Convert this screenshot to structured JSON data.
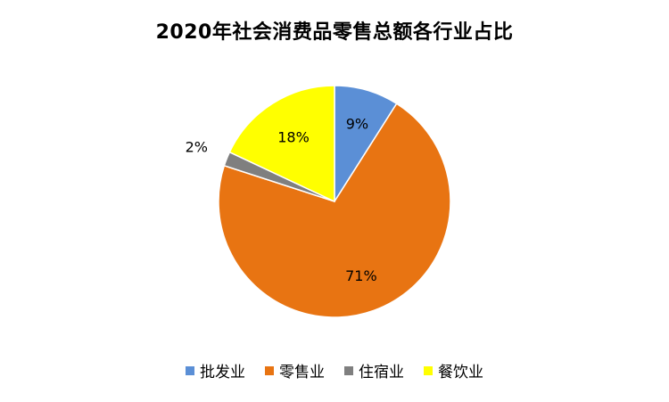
{
  "chart_data": {
    "type": "pie",
    "title": "2020年社会消费品零售总额各行业占比",
    "categories": [
      "批发业",
      "零售业",
      "住宿业",
      "餐饮业"
    ],
    "values": [
      9,
      71,
      2,
      18
    ],
    "labels": [
      "9%",
      "71%",
      "2%",
      "18%"
    ],
    "colors": [
      "#5B8FD6",
      "#E87412",
      "#7F7F7F",
      "#FFFF00"
    ],
    "start_angle_deg": 0,
    "direction": "clockwise",
    "legend_position": "bottom"
  }
}
